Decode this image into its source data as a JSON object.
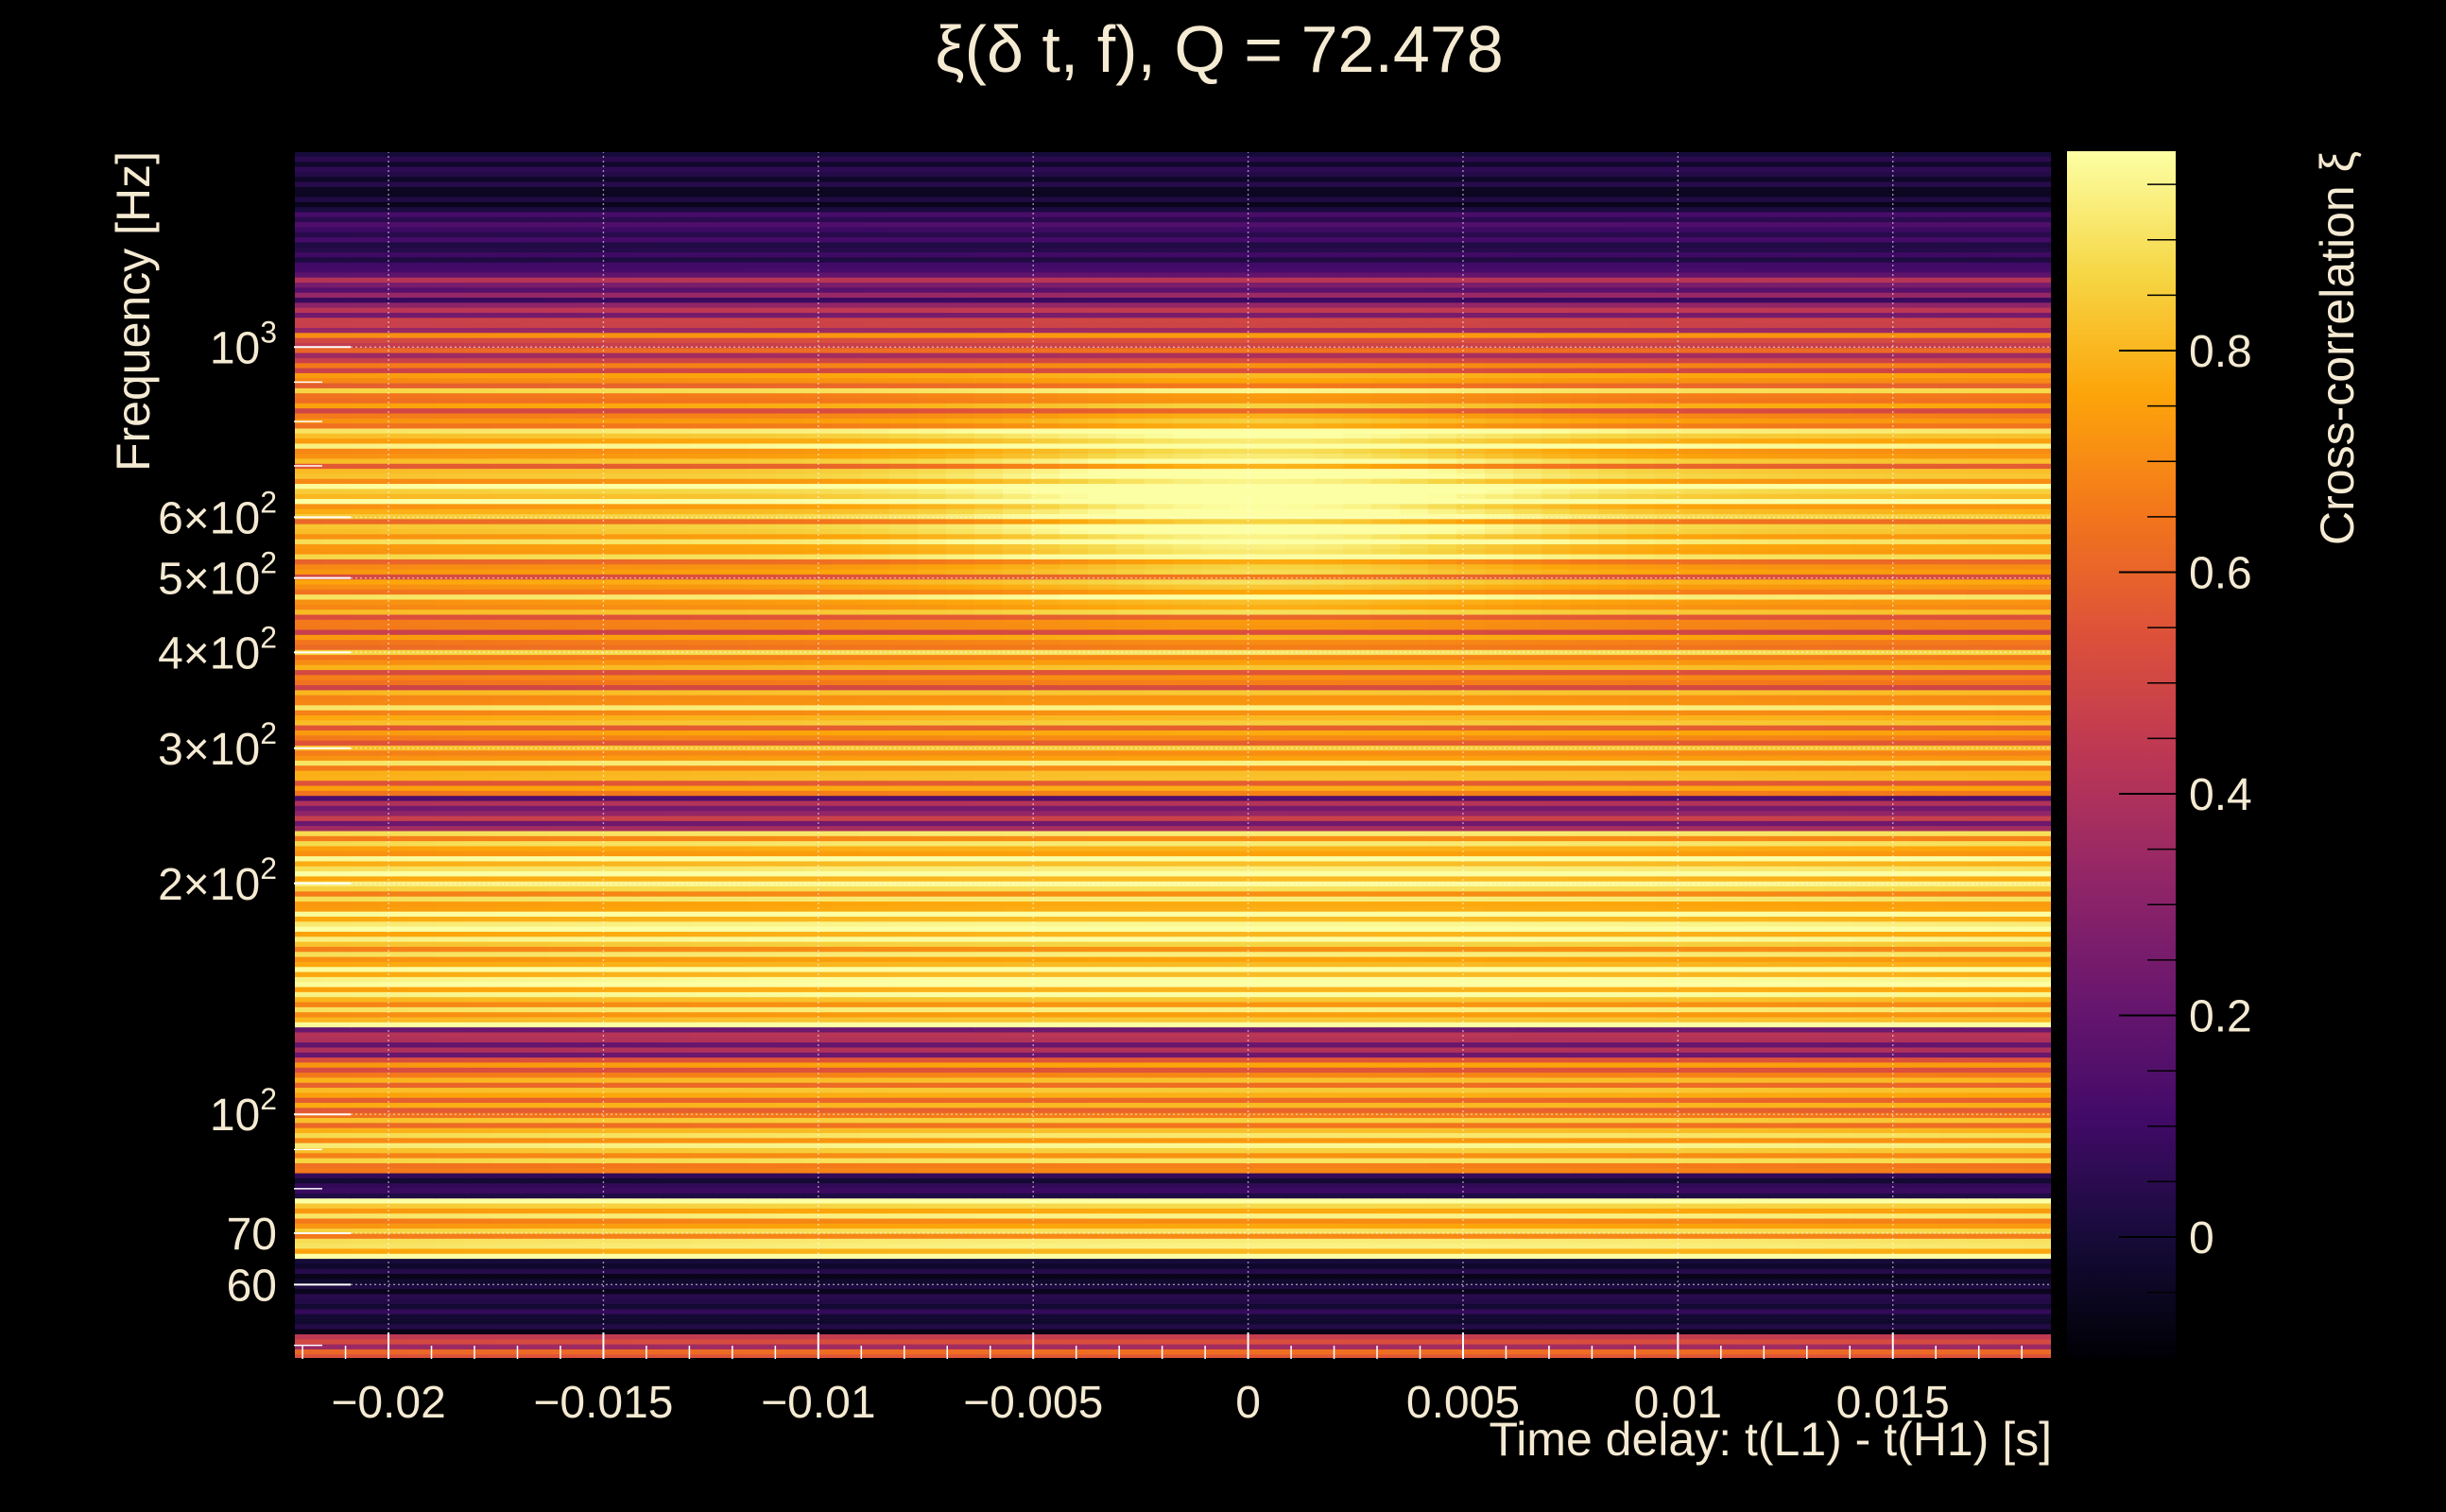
{
  "chart_data": {
    "type": "heatmap",
    "title": "ξ(δ t, f), Q = 72.478",
    "xlabel": "Time delay: t(L1) - t(H1) [s]",
    "ylabel": "Frequency [Hz]",
    "colorbar_label": "Cross-correlation ξ",
    "xlim": [
      -0.0222,
      0.0187
    ],
    "ylim": [
      48,
      1800
    ],
    "y_scale": "log",
    "grid": true,
    "colormap": "inferno",
    "x_ticks": [
      {
        "value": -0.02,
        "label": "−0.02"
      },
      {
        "value": -0.015,
        "label": "−0.015"
      },
      {
        "value": -0.01,
        "label": "−0.01"
      },
      {
        "value": -0.005,
        "label": "−0.005"
      },
      {
        "value": 0,
        "label": "0"
      },
      {
        "value": 0.005,
        "label": "0.005"
      },
      {
        "value": 0.01,
        "label": "0.01"
      },
      {
        "value": 0.015,
        "label": "0.015"
      }
    ],
    "y_ticks": [
      {
        "value": 1000,
        "base": "10",
        "exp": "3"
      },
      {
        "value": 600,
        "base": "6×10",
        "exp": "2"
      },
      {
        "value": 500,
        "base": "5×10",
        "exp": "2"
      },
      {
        "value": 400,
        "base": "4×10",
        "exp": "2"
      },
      {
        "value": 300,
        "base": "3×10",
        "exp": "2"
      },
      {
        "value": 200,
        "base": "2×10",
        "exp": "2"
      },
      {
        "value": 100,
        "base": "10",
        "exp": "2"
      },
      {
        "value": 70,
        "base": "70",
        "exp": ""
      },
      {
        "value": 60,
        "base": "60",
        "exp": ""
      }
    ],
    "colorbar_range": [
      -0.11,
      0.98
    ],
    "colorbar_ticks": [
      {
        "value": 0,
        "label": "0"
      },
      {
        "value": 0.2,
        "label": "0.2"
      },
      {
        "value": 0.4,
        "label": "0.4"
      },
      {
        "value": 0.6,
        "label": "0.6"
      },
      {
        "value": 0.8,
        "label": "0.8"
      }
    ],
    "peak": {
      "dt": 0.0003,
      "f": 630,
      "xi": 0.98
    },
    "frequency_bands": [
      {
        "f_low": 1500,
        "f_high": 1800,
        "xi": 0.0
      },
      {
        "f_low": 1250,
        "f_high": 1500,
        "xi": 0.08
      },
      {
        "f_low": 1150,
        "f_high": 1250,
        "xi": 0.25
      },
      {
        "f_low": 1050,
        "f_high": 1150,
        "xi": 0.4
      },
      {
        "f_low": 960,
        "f_high": 1050,
        "xi": 0.55
      },
      {
        "f_low": 880,
        "f_high": 960,
        "xi": 0.65
      },
      {
        "f_low": 800,
        "f_high": 880,
        "xi": 0.72
      },
      {
        "f_low": 700,
        "f_high": 800,
        "xi": 0.8
      },
      {
        "f_low": 560,
        "f_high": 700,
        "xi": 0.85
      },
      {
        "f_low": 460,
        "f_high": 560,
        "xi": 0.75
      },
      {
        "f_low": 360,
        "f_high": 460,
        "xi": 0.7
      },
      {
        "f_low": 260,
        "f_high": 360,
        "xi": 0.75
      },
      {
        "f_low": 235,
        "f_high": 260,
        "xi": 0.3
      },
      {
        "f_low": 130,
        "f_high": 235,
        "xi": 0.88
      },
      {
        "f_low": 118,
        "f_high": 130,
        "xi": 0.3
      },
      {
        "f_low": 100,
        "f_high": 118,
        "xi": 0.7
      },
      {
        "f_low": 84,
        "f_high": 100,
        "xi": 0.8
      },
      {
        "f_low": 78,
        "f_high": 84,
        "xi": 0.05
      },
      {
        "f_low": 65,
        "f_high": 78,
        "xi": 0.85
      },
      {
        "f_low": 52,
        "f_high": 65,
        "xi": 0.0
      },
      {
        "f_low": 48,
        "f_high": 52,
        "xi": 0.5
      }
    ]
  }
}
